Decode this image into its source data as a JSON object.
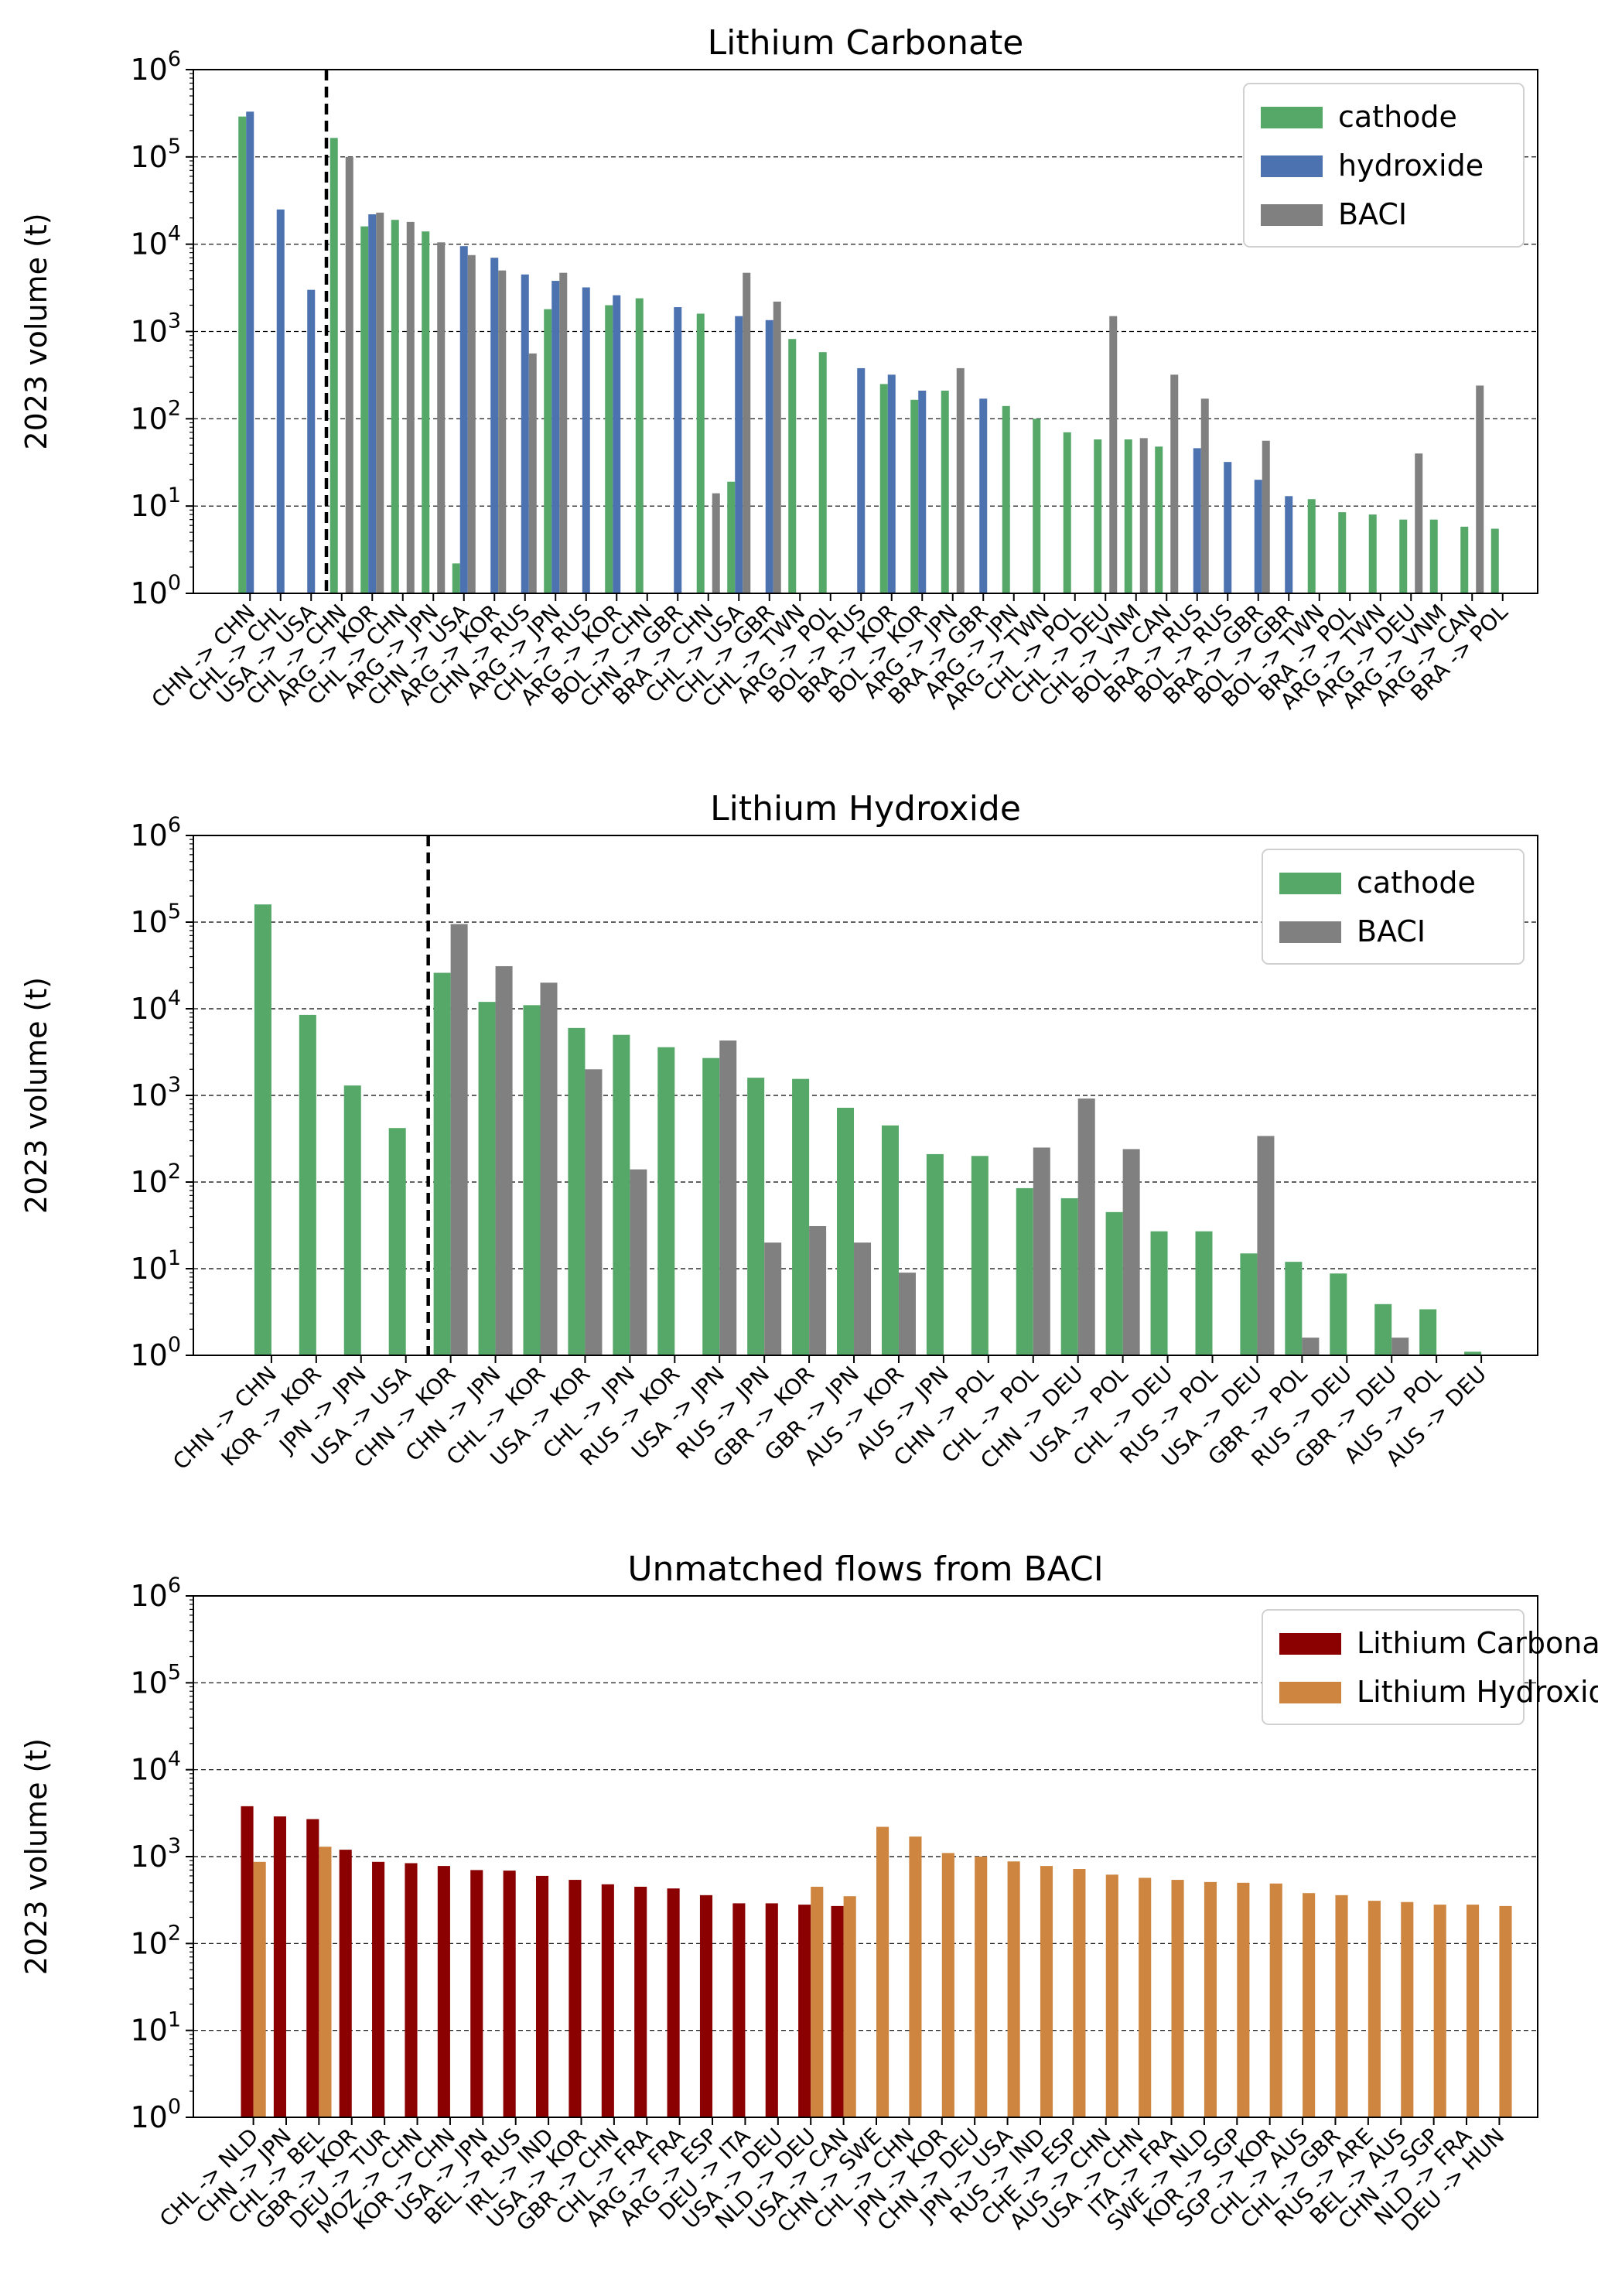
{
  "chart_data": [
    {
      "type": "bar",
      "title": "Lithium Carbonate",
      "ylabel": "2023 volume (t)",
      "xlabel": "",
      "y_scale": "log",
      "ylim": [
        1,
        1000000
      ],
      "y_tick_labels": [
        "10^0",
        "10^1",
        "10^2",
        "10^3",
        "10^4",
        "10^5",
        "10^6"
      ],
      "grid": "horizontal dashed",
      "legend_position": "top-right",
      "divider_after_index": 2,
      "categories": [
        "CHN -> CHN",
        "CHL -> CHL",
        "USA -> USA",
        "CHL -> CHN",
        "ARG -> KOR",
        "CHL -> CHN",
        "ARG -> JPN",
        "CHN -> USA",
        "ARG -> KOR",
        "CHN -> RUS",
        "ARG -> JPN",
        "CHL -> RUS",
        "ARG -> KOR",
        "BOL -> CHN",
        "CHN -> GBR",
        "BRA -> CHN",
        "CHL -> USA",
        "CHL -> GBR",
        "CHL -> TWN",
        "ARG -> POL",
        "BOL -> RUS",
        "BRA -> KOR",
        "BOL -> KOR",
        "ARG -> JPN",
        "BRA -> GBR",
        "ARG -> JPN",
        "ARG -> TWN",
        "CHL -> POL",
        "CHL -> DEU",
        "CHL -> VNM",
        "BOL -> CAN",
        "BRA -> RUS",
        "BOL -> RUS",
        "BRA -> GBR",
        "BOL -> GBR",
        "BOL -> TWN",
        "BRA -> POL",
        "ARG -> TWN",
        "ARG -> DEU",
        "ARG -> VNM",
        "ARG -> CAN",
        "BRA -> POL"
      ],
      "series": [
        {
          "name": "cathode",
          "color": "#55a868",
          "values": [
            290000,
            null,
            null,
            165000,
            16000,
            19000,
            14000,
            2.2,
            null,
            null,
            1800,
            null,
            2000,
            2400,
            null,
            1600,
            19,
            null,
            820,
            580,
            null,
            250,
            165,
            210,
            null,
            140,
            100,
            70,
            58,
            58,
            48,
            null,
            null,
            null,
            null,
            12,
            8.5,
            8,
            7,
            7,
            5.8,
            5.5
          ]
        },
        {
          "name": "hydroxide",
          "color": "#4c72b0",
          "values": [
            330000,
            25000,
            3000,
            null,
            22000,
            null,
            null,
            9500,
            7000,
            4500,
            3800,
            3200,
            2600,
            null,
            1900,
            null,
            1500,
            1350,
            null,
            null,
            380,
            320,
            210,
            null,
            170,
            null,
            null,
            null,
            null,
            null,
            null,
            46,
            32,
            20,
            13,
            null,
            null,
            null,
            null,
            null,
            null,
            null
          ]
        },
        {
          "name": "BACI",
          "color": "#808080",
          "values": [
            null,
            null,
            null,
            100000,
            23000,
            18000,
            10500,
            7500,
            5000,
            560,
            4700,
            null,
            null,
            null,
            null,
            14,
            4700,
            2200,
            null,
            null,
            null,
            null,
            null,
            380,
            null,
            null,
            null,
            null,
            1500,
            60,
            320,
            170,
            null,
            56,
            null,
            null,
            null,
            null,
            40,
            null,
            240,
            null
          ]
        }
      ]
    },
    {
      "type": "bar",
      "title": "Lithium Hydroxide",
      "ylabel": "2023 volume (t)",
      "xlabel": "",
      "y_scale": "log",
      "ylim": [
        1,
        1000000
      ],
      "y_tick_labels": [
        "10^0",
        "10^1",
        "10^2",
        "10^3",
        "10^4",
        "10^5",
        "10^6"
      ],
      "grid": "horizontal dashed",
      "legend_position": "top-right",
      "divider_after_index": 3,
      "categories": [
        "CHN -> CHN",
        "KOR -> KOR",
        "JPN -> JPN",
        "USA -> USA",
        "CHN -> KOR",
        "CHN -> JPN",
        "CHL -> KOR",
        "USA -> KOR",
        "CHL -> JPN",
        "RUS -> KOR",
        "USA -> JPN",
        "RUS -> JPN",
        "GBR -> KOR",
        "GBR -> JPN",
        "AUS -> KOR",
        "AUS -> JPN",
        "CHN -> POL",
        "CHL -> POL",
        "CHN -> DEU",
        "USA -> POL",
        "CHL -> DEU",
        "RUS -> POL",
        "USA -> DEU",
        "GBR -> POL",
        "RUS -> DEU",
        "GBR -> DEU",
        "AUS -> POL",
        "AUS -> DEU"
      ],
      "series": [
        {
          "name": "cathode",
          "color": "#55a868",
          "values": [
            160000,
            8500,
            1300,
            420,
            26000,
            12000,
            11000,
            6000,
            5000,
            3600,
            2700,
            1600,
            1550,
            720,
            450,
            210,
            200,
            85,
            65,
            45,
            27,
            27,
            15,
            12,
            8.8,
            3.9,
            3.4,
            1.1
          ]
        },
        {
          "name": "BACI",
          "color": "#808080",
          "values": [
            null,
            null,
            null,
            null,
            95000,
            31000,
            20000,
            2000,
            140,
            null,
            4300,
            20,
            31,
            20,
            9,
            null,
            null,
            250,
            920,
            240,
            null,
            null,
            340,
            1.6,
            null,
            1.6,
            null,
            null
          ]
        }
      ]
    },
    {
      "type": "bar",
      "title": "Unmatched flows from BACI",
      "ylabel": "2023 volume (t)",
      "xlabel": "",
      "y_scale": "log",
      "ylim": [
        1,
        1000000
      ],
      "y_tick_labels": [
        "10^0",
        "10^1",
        "10^2",
        "10^3",
        "10^4",
        "10^5",
        "10^6"
      ],
      "grid": "horizontal dashed",
      "legend_position": "top-right",
      "categories": [
        "CHL -> NLD",
        "CHN -> JPN",
        "CHL -> BEL",
        "GBR -> KOR",
        "DEU -> TUR",
        "MOZ -> CHN",
        "KOR -> CHN",
        "USA -> JPN",
        "BEL -> RUS",
        "IRL -> IND",
        "USA -> KOR",
        "GBR -> CHN",
        "CHL -> FRA",
        "ARG -> FRA",
        "ARG -> ESP",
        "DEU -> ITA",
        "USA -> DEU",
        "NLD -> DEU",
        "USA -> CAN",
        "CHN -> SWE",
        "CHL -> CHN",
        "JPN -> KOR",
        "CHN -> DEU",
        "JPN -> USA",
        "RUS -> IND",
        "CHE -> ESP",
        "AUS -> CHN",
        "USA -> CHN",
        "ITA -> FRA",
        "SWE -> NLD",
        "KOR -> SGP",
        "SGP -> KOR",
        "CHL -> AUS",
        "CHL -> GBR",
        "RUS -> ARE",
        "BEL -> AUS",
        "CHN -> SGP",
        "NLD -> FRA",
        "DEU -> HUN"
      ],
      "series": [
        {
          "name": "Lithium Carbonate",
          "color": "#8b0000",
          "values": [
            3800,
            2900,
            2700,
            1200,
            870,
            840,
            780,
            700,
            690,
            600,
            540,
            480,
            450,
            430,
            360,
            290,
            290,
            280,
            270,
            null,
            null,
            null,
            null,
            null,
            null,
            null,
            null,
            null,
            null,
            null,
            null,
            null,
            null,
            null,
            null,
            null,
            null,
            null,
            null
          ]
        },
        {
          "name": "Lithium Hydroxide",
          "color": "#cd853f",
          "values": [
            870,
            null,
            1300,
            null,
            null,
            null,
            null,
            null,
            null,
            null,
            null,
            null,
            null,
            null,
            null,
            null,
            null,
            450,
            350,
            2200,
            1700,
            1100,
            1000,
            880,
            780,
            720,
            620,
            570,
            540,
            510,
            500,
            490,
            380,
            360,
            310,
            300,
            280,
            280,
            270
          ]
        }
      ]
    }
  ]
}
